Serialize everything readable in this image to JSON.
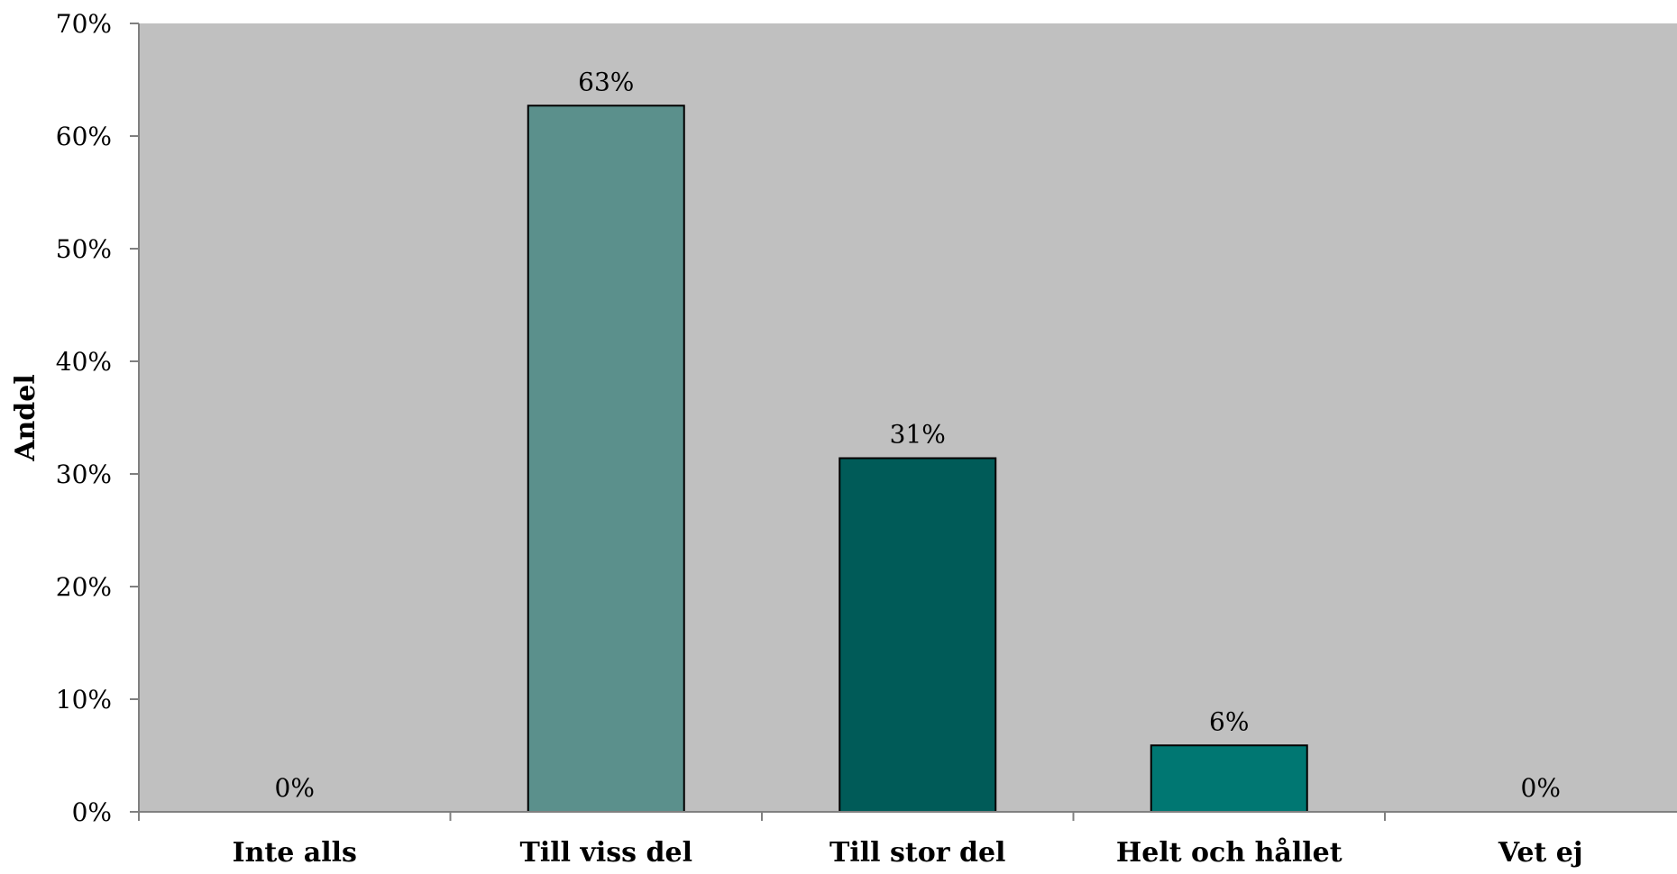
{
  "chart_data": {
    "type": "bar",
    "ylabel": "Andel",
    "xlabel": "",
    "ylim": [
      0,
      70
    ],
    "yticks": [
      0,
      10,
      20,
      30,
      40,
      50,
      60,
      70
    ],
    "ytick_labels": [
      "0%",
      "10%",
      "20%",
      "30%",
      "40%",
      "50%",
      "60%",
      "70%"
    ],
    "categories": [
      "Inte alls",
      "Till viss del",
      "Till stor del",
      "Helt och hållet",
      "Vet ej"
    ],
    "values": [
      0,
      62.7,
      31.4,
      5.9,
      0
    ],
    "data_labels": [
      "0%",
      "63%",
      "31%",
      "6%",
      "0%"
    ],
    "bar_colors": [
      "#5b908c",
      "#5b908c",
      "#005b58",
      "#007772",
      "#5b908c"
    ],
    "plot_background": "#c0c0c0",
    "grid": false,
    "legend": "none"
  }
}
